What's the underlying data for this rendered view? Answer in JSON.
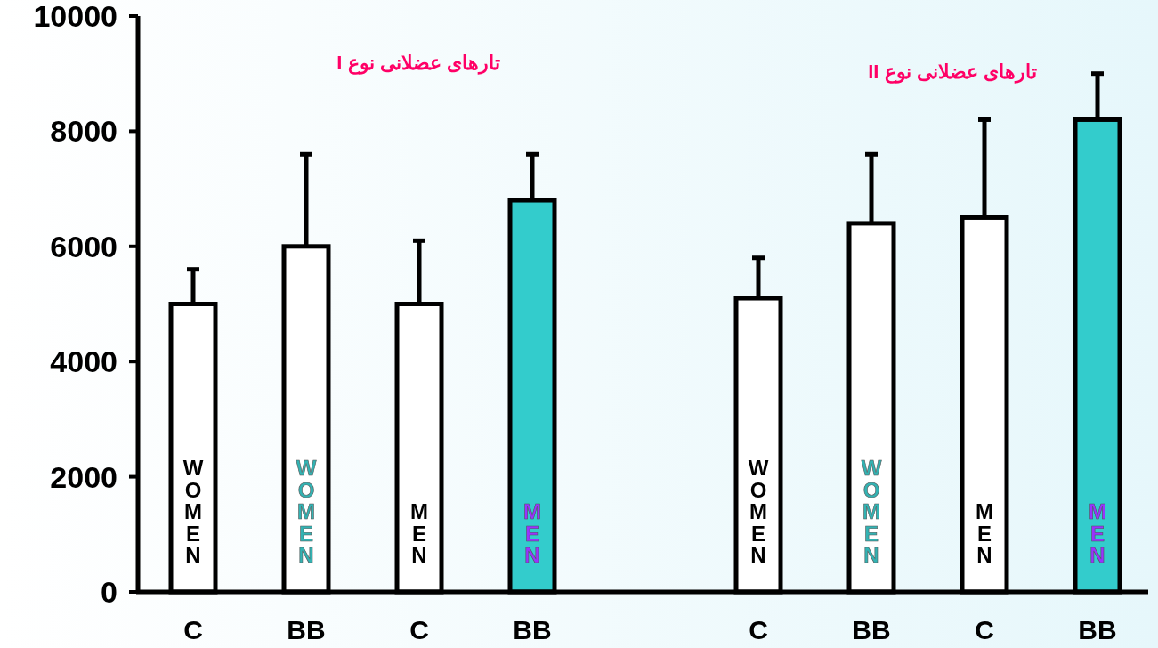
{
  "chart_data": {
    "type": "bar",
    "categories": [
      "C",
      "BB",
      "C",
      "BB",
      null,
      "C",
      "BB",
      "C",
      "BB"
    ],
    "values": [
      5000,
      6000,
      5000,
      6800,
      null,
      5100,
      6400,
      6500,
      8200
    ],
    "colors": [
      "#ffffff",
      "#ffffff",
      "#ffffff",
      "#33cccc",
      null,
      "#ffffff",
      "#ffffff",
      "#ffffff",
      "#33cccc"
    ],
    "errors": [
      [
        5000,
        5600
      ],
      [
        6000,
        7600
      ],
      [
        5000,
        6100
      ],
      [
        6800,
        7600
      ],
      null,
      [
        5100,
        5800
      ],
      [
        6400,
        7600
      ],
      [
        6500,
        8200
      ],
      [
        8200,
        9000
      ]
    ],
    "ylim": [
      0,
      10000
    ],
    "yticks": [
      0,
      2000,
      4000,
      6000,
      8000,
      10000
    ],
    "annotations": [
      "WOMEN",
      "WOMEN",
      "MEN",
      "MEN",
      "WOMEN",
      "WOMEN",
      "MEN",
      "MEN",
      "تارهای عضلانی نوع I",
      "تارهای عضلانی نوع II"
    ]
  }
}
